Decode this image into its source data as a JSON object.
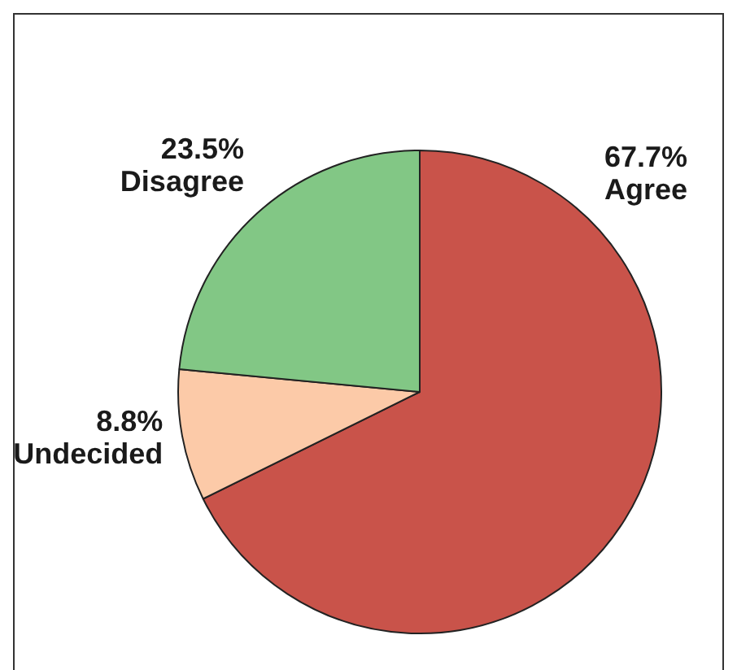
{
  "chart_data": {
    "type": "pie",
    "categories": [
      "Agree",
      "Undecided",
      "Disagree"
    ],
    "values": [
      67.7,
      8.8,
      23.5
    ],
    "colors": [
      "#c9534a",
      "#fccaa8",
      "#82c785"
    ],
    "value_labels": [
      "67.7%",
      "8.8%",
      "23.5%"
    ],
    "legend": false
  }
}
